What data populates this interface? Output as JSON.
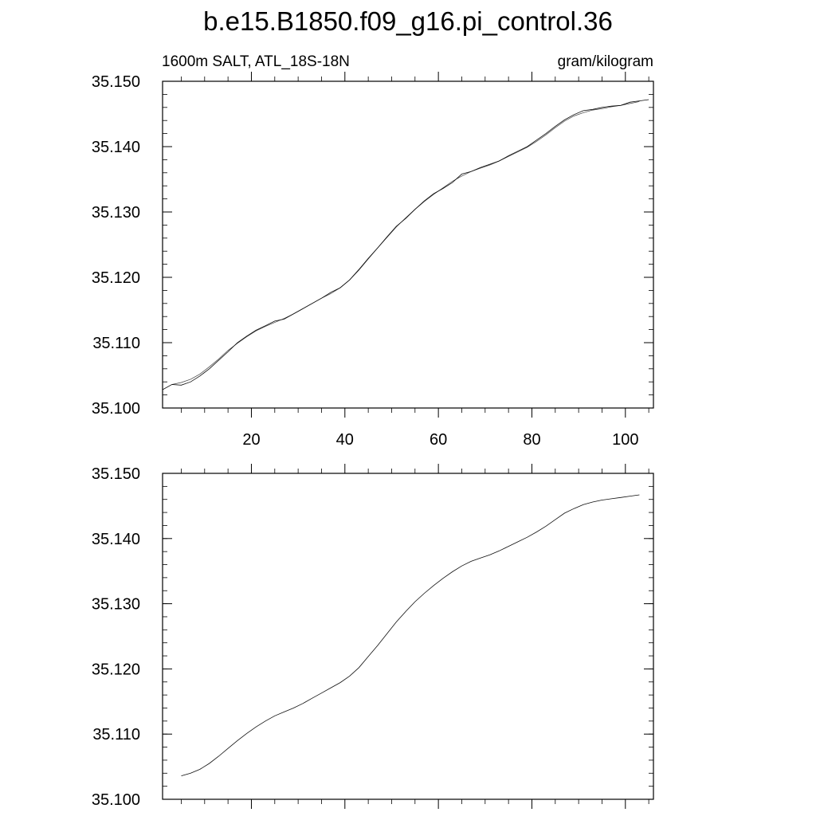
{
  "title": "b.e15.B1850.f09_g16.pi_control.36",
  "subtitle_left": "1600m SALT, ATL_18S-18N",
  "subtitle_right": "gram/kilogram",
  "chart_data": [
    {
      "type": "line",
      "panel": "top",
      "xlim": [
        1,
        106
      ],
      "ylim": [
        35.1,
        35.15
      ],
      "x_ticks": [
        20,
        40,
        60,
        80,
        100
      ],
      "x_tick_labels": [
        "20",
        "40",
        "60",
        "80",
        "100"
      ],
      "y_ticks": [
        35.1,
        35.11,
        35.12,
        35.13,
        35.14,
        35.15
      ],
      "y_tick_labels": [
        "35.100",
        "35.110",
        "35.120",
        "35.130",
        "35.140",
        "35.150"
      ],
      "grid": false,
      "series": [
        {
          "x": [
            1,
            3,
            5,
            7,
            9,
            11,
            13,
            15,
            17,
            19,
            21,
            23,
            25,
            27,
            29,
            31,
            33,
            35,
            37,
            39,
            41,
            43,
            45,
            47,
            49,
            51,
            53,
            55,
            57,
            59,
            61,
            63,
            65,
            67,
            69,
            71,
            73,
            75,
            77,
            79,
            81,
            83,
            85,
            87,
            89,
            91,
            93,
            95,
            97,
            99,
            101,
            103,
            105
          ],
          "values": [
            35.1028,
            35.1036,
            35.1035,
            35.104,
            35.1049,
            35.106,
            35.1073,
            35.1086,
            35.11,
            35.111,
            35.1119,
            35.1126,
            35.1133,
            35.1136,
            35.1144,
            35.1152,
            35.116,
            35.1168,
            35.1177,
            35.1184,
            35.1196,
            35.1212,
            35.1229,
            35.1245,
            35.1262,
            35.1278,
            35.129,
            35.1304,
            35.1317,
            35.1328,
            35.1336,
            35.1345,
            35.1358,
            35.1362,
            35.1368,
            35.1373,
            35.1378,
            35.1386,
            35.1393,
            35.14,
            35.141,
            35.142,
            35.1431,
            35.1441,
            35.1449,
            35.1455,
            35.1457,
            35.146,
            35.1462,
            35.1463,
            35.1468,
            35.147,
            35.1472
          ]
        },
        {
          "x": [
            3,
            5,
            7,
            9,
            11,
            13,
            15,
            17,
            19,
            21,
            23,
            25,
            27,
            29,
            31,
            33,
            35,
            37,
            39,
            41,
            43,
            45,
            47,
            49,
            51,
            53,
            55,
            57,
            59,
            61,
            63,
            65,
            67,
            69,
            71,
            73,
            75,
            77,
            79,
            81,
            83,
            85,
            87,
            89,
            91,
            93,
            95,
            97,
            99,
            101,
            103
          ],
          "values": [
            35.1036,
            35.1039,
            35.1044,
            35.1052,
            35.1063,
            35.1075,
            35.1088,
            35.1099,
            35.1109,
            35.1118,
            35.1125,
            35.1131,
            35.1137,
            35.1144,
            35.1152,
            35.116,
            35.1168,
            35.1175,
            35.1184,
            35.1196,
            35.1211,
            35.1228,
            35.1245,
            35.1261,
            35.1277,
            35.1291,
            35.1304,
            35.1316,
            35.1327,
            35.1337,
            35.1347,
            35.1355,
            35.1362,
            35.1367,
            35.1372,
            35.1378,
            35.1385,
            35.1392,
            35.1399,
            35.1408,
            35.1418,
            35.1429,
            35.1439,
            35.1447,
            35.1452,
            35.1456,
            35.1458,
            35.1461,
            35.1463,
            35.1466,
            35.1469
          ]
        }
      ]
    },
    {
      "type": "line",
      "panel": "bottom",
      "xlim": [
        1,
        106
      ],
      "ylim": [
        35.1,
        35.15
      ],
      "x_ticks": [
        20,
        40,
        60,
        80,
        100
      ],
      "x_tick_labels": [],
      "y_ticks": [
        35.1,
        35.11,
        35.12,
        35.13,
        35.14,
        35.15
      ],
      "y_tick_labels": [
        "35.100",
        "35.110",
        "35.120",
        "35.130",
        "35.140",
        "35.150"
      ],
      "grid": false,
      "series": [
        {
          "x": [
            5,
            7,
            9,
            11,
            13,
            15,
            17,
            19,
            21,
            23,
            25,
            27,
            29,
            31,
            33,
            35,
            37,
            39,
            41,
            43,
            45,
            47,
            49,
            51,
            53,
            55,
            57,
            59,
            61,
            63,
            65,
            67,
            69,
            71,
            73,
            75,
            77,
            79,
            81,
            83,
            85,
            87,
            89,
            91,
            93,
            95,
            97,
            99,
            101,
            103
          ],
          "values": [
            35.1036,
            35.104,
            35.1046,
            35.1055,
            35.1066,
            35.1078,
            35.109,
            35.1101,
            35.1111,
            35.112,
            35.1128,
            35.1134,
            35.114,
            35.1147,
            35.1155,
            35.1163,
            35.1171,
            35.1179,
            35.1189,
            35.1202,
            35.1219,
            35.1236,
            35.1254,
            35.1272,
            35.1288,
            35.1303,
            35.1316,
            35.1328,
            35.1339,
            35.1349,
            35.1358,
            35.1365,
            35.137,
            35.1375,
            35.1381,
            35.1388,
            35.1395,
            35.1402,
            35.141,
            35.1419,
            35.1429,
            35.1439,
            35.1446,
            35.1452,
            35.1456,
            35.1459,
            35.1461,
            35.1463,
            35.1465,
            35.1467
          ]
        }
      ]
    }
  ]
}
